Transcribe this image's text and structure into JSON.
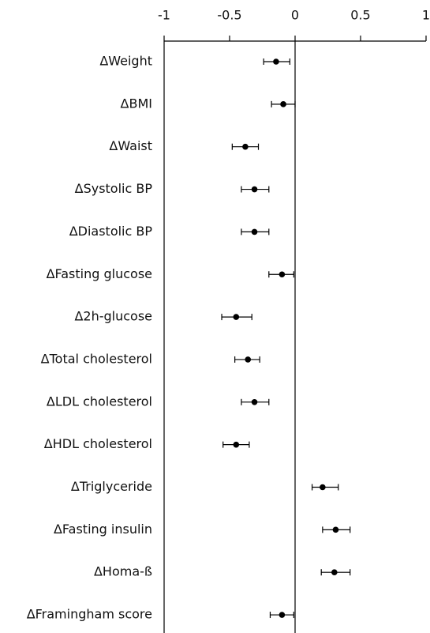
{
  "chart_data": {
    "type": "forest",
    "categories": [
      "ΔWeight",
      "ΔBMI",
      "ΔWaist",
      "ΔSystolic BP",
      "ΔDiastolic BP",
      "ΔFasting glucose",
      "Δ2h-glucose",
      "ΔTotal cholesterol",
      "ΔLDL cholesterol",
      "ΔHDL cholesterol",
      "ΔTriglyceride",
      "ΔFasting insulin",
      "ΔHoma-ß",
      "ΔFramingham score"
    ],
    "values": [
      -0.145,
      -0.09,
      -0.38,
      -0.31,
      -0.31,
      -0.1,
      -0.45,
      -0.36,
      -0.31,
      -0.45,
      0.21,
      0.31,
      0.3,
      -0.1
    ],
    "lower": [
      -0.24,
      -0.18,
      -0.48,
      -0.41,
      -0.41,
      -0.2,
      -0.56,
      -0.46,
      -0.41,
      -0.55,
      0.13,
      0.21,
      0.2,
      -0.19
    ],
    "upper": [
      -0.04,
      0.0,
      -0.28,
      -0.2,
      -0.2,
      -0.01,
      -0.33,
      -0.27,
      -0.2,
      -0.35,
      0.33,
      0.42,
      0.42,
      -0.01
    ],
    "color": "#000000",
    "xlim": [
      -1,
      1
    ],
    "xticks": [
      -1,
      -0.5,
      0,
      0.5,
      1
    ]
  }
}
